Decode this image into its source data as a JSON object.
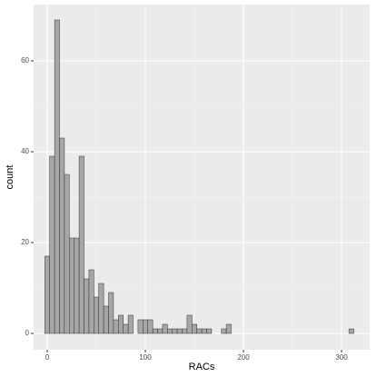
{
  "chart_data": {
    "type": "histogram",
    "x_label": "RACs",
    "y_label": "count",
    "bins": [
      -2.5,
      2.5,
      7.5,
      12.5,
      17.5,
      22.5,
      27.5,
      32.5,
      37.5,
      42.5,
      47.5,
      52.5,
      57.5,
      62.5,
      67.5,
      72.5,
      77.5,
      82.5,
      87.5,
      92.5,
      97.5,
      102.5,
      107.5,
      112.5,
      117.5,
      122.5,
      127.5,
      132.5,
      137.5,
      142.5,
      147.5,
      152.5,
      157.5,
      162.5,
      167.5,
      172.5,
      177.5,
      182.5,
      187.5,
      192.5,
      197.5,
      202.5,
      207.5,
      212.5,
      217.5,
      222.5,
      227.5,
      232.5,
      237.5,
      242.5,
      247.5,
      252.5,
      257.5,
      262.5,
      267.5,
      272.5,
      277.5,
      282.5,
      287.5,
      292.5,
      297.5,
      302.5,
      307.5,
      312.5
    ],
    "values": [
      17,
      39,
      69,
      43,
      35,
      21,
      21,
      39,
      12,
      14,
      8,
      11,
      6,
      9,
      3,
      4,
      2,
      4,
      0,
      3,
      3,
      3,
      1,
      1,
      2,
      1,
      1,
      1,
      1,
      4,
      2,
      1,
      1,
      1,
      0,
      0,
      1,
      2,
      0,
      0,
      0,
      0,
      0,
      0,
      0,
      0,
      0,
      0,
      0,
      0,
      0,
      0,
      0,
      0,
      0,
      0,
      0,
      0,
      0,
      0,
      0,
      0,
      1
    ],
    "color": "#a6a6a6",
    "edge_color": "#333333",
    "xlim": [
      -13.9,
      328.7
    ],
    "ylim": [
      -3.6,
      72.4
    ],
    "xticks": [
      0,
      100,
      200,
      300
    ],
    "yticks": [
      0,
      20,
      40,
      60
    ],
    "grid": true
  }
}
